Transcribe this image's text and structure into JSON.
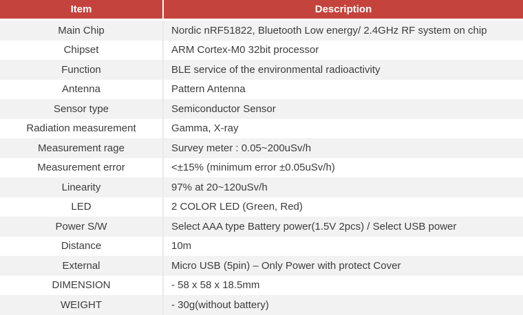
{
  "colors": {
    "header_bg": "#c4433c",
    "header_text": "#ffffff",
    "row_alt_bg": "#f2f2f2",
    "row_bg": "#ffffff",
    "body_text": "#3c3c3c",
    "divider": "#e9e9e9"
  },
  "table": {
    "columns": [
      {
        "label": "Item"
      },
      {
        "label": "Description"
      }
    ],
    "rows": [
      {
        "item": "Main Chip",
        "description": "Nordic nRF51822, Bluetooth Low energy/ 2.4GHz RF system on chip"
      },
      {
        "item": "Chipset",
        "description": "ARM Cortex-M0 32bit processor"
      },
      {
        "item": "Function",
        "description": "BLE service of the environmental radioactivity"
      },
      {
        "item": "Antenna",
        "description": "Pattern Antenna"
      },
      {
        "item": "Sensor type",
        "description": "Semiconductor Sensor"
      },
      {
        "item": "Radiation measurement",
        "description": "Gamma, X-ray"
      },
      {
        "item": "Measurement rage",
        "description": "Survey meter : 0.05~200uSv/h"
      },
      {
        "item": "Measurement error",
        "description": "<±15% (minimum error ±0.05uSv/h)"
      },
      {
        "item": "Linearity",
        "description": "97% at 20~120uSv/h"
      },
      {
        "item": "LED",
        "description": "2 COLOR LED (Green, Red)"
      },
      {
        "item": "Power S/W",
        "description": "Select AAA type Battery power(1.5V 2pcs) / Select USB power"
      },
      {
        "item": "Distance",
        "description": "10m"
      },
      {
        "item": "External",
        "description": "Micro USB (5pin) – Only Power with protect Cover"
      },
      {
        "item": "DIMENSION",
        "description": "- 58 x 58 x 18.5mm"
      },
      {
        "item": "WEIGHT",
        "description": "- 30g(without battery)"
      }
    ]
  }
}
